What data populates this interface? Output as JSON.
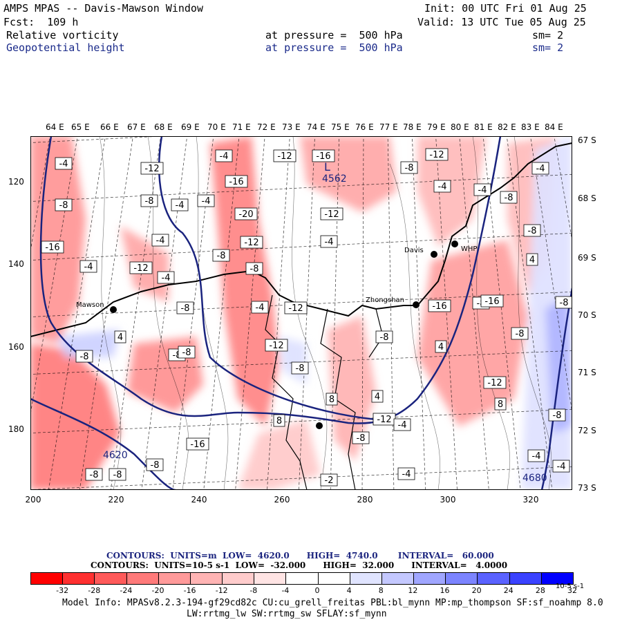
{
  "header": {
    "title": "AMPS MPAS -- Davis-Mawson Window",
    "forecast": "Fcst:  109 h",
    "init": "Init: 00 UTC Fri 01 Aug 25",
    "valid": "Valid: 13 UTC Tue 05 Aug 25",
    "field1": {
      "name": "Relative vorticity",
      "level": "at pressure =  500 hPa",
      "smooth": "sm= 2"
    },
    "field2": {
      "name": "Geopotential height",
      "level": "at pressure =  500 hPa",
      "smooth": "sm= 2"
    }
  },
  "axes": {
    "lon_labels": [
      "64 E",
      "65 E",
      "66 E",
      "67 E",
      "68 E",
      "69 E",
      "70 E",
      "71 E",
      "72 E",
      "73 E",
      "74 E",
      "75 E",
      "76 E",
      "77 E",
      "78 E",
      "79 E",
      "80 E",
      "81 E",
      "82 E",
      "83 E",
      "84 E"
    ],
    "lat_labels": [
      "67 S",
      "68 S",
      "69 S",
      "70 S",
      "71 S",
      "72 S",
      "73 S"
    ],
    "grid_y": [
      "120",
      "140",
      "160",
      "180"
    ],
    "grid_x": [
      "200",
      "220",
      "240",
      "260",
      "280",
      "300",
      "320"
    ]
  },
  "map": {
    "stations": [
      {
        "name": "Davis"
      },
      {
        "name": "WHP"
      },
      {
        "name": "Mawson"
      },
      {
        "name": "Zhongshan"
      }
    ],
    "pressure_centers": [
      {
        "symbol": "L",
        "value": "4562"
      }
    ],
    "height_labels": [
      "4620",
      "4680"
    ],
    "vorticity_labels": [
      "-4",
      "-12",
      "-4",
      "-12",
      "-16",
      "-8",
      "-12",
      "-4",
      "-16",
      "-4",
      "-8",
      "-4",
      "-8",
      "-4",
      "-12",
      "-8",
      "-20",
      "-8",
      "-4",
      "-4",
      "-12",
      "-4",
      "-8",
      "-16",
      "-4",
      "-12",
      "-4",
      "-8",
      "-4",
      "-8",
      "-16",
      "-8",
      "4",
      "-8",
      "-12",
      "-16",
      "4",
      "4",
      "-8",
      "-8",
      "-16",
      "-12",
      "-8",
      "-8",
      "8",
      "4",
      "-12",
      "8",
      "-8",
      "-8",
      "-8",
      "-8",
      "-4",
      "-12",
      "-8",
      "-4",
      "-2",
      "-4",
      "-4",
      "-8",
      "-8",
      "8"
    ]
  },
  "contours": {
    "line1": "CONTOURS:  UNITS=m  LOW=  4620.0      HIGH=  4740.0       INTERVAL=   60.000",
    "line2": "CONTOURS:  UNITS=10-5 s-1  LOW=  -32.000      HIGH=  32.000      INTERVAL=   4.0000"
  },
  "colorbar": {
    "labels": [
      "-32",
      "-28",
      "-24",
      "-20",
      "-16",
      "-12",
      "-8",
      "-4",
      "0",
      "4",
      "8",
      "12",
      "16",
      "20",
      "24",
      "28",
      "32"
    ],
    "unit": "10-5 s-1",
    "colors": [
      "#ff0000",
      "#ff3030",
      "#ff5a5a",
      "#ff7a7a",
      "#ff9a9a",
      "#ffb4b4",
      "#ffcccc",
      "#ffe4e4",
      "#ffffff",
      "#ffffff",
      "#e0e4ff",
      "#c4c8ff",
      "#a0a6ff",
      "#7c84ff",
      "#5a62ff",
      "#3a42ff",
      "#0000ff"
    ]
  },
  "model_info": {
    "line1": "Model Info: MPASv8.2.3-194-gf29cd82c CU:cu_grell_freitas PBL:bl_mynn MP:mp_thompson SF:sf_noahmp 8.0",
    "line2": "LW:rrtmg_lw SW:rrtmg_sw SFLAY:sf_mynn"
  }
}
